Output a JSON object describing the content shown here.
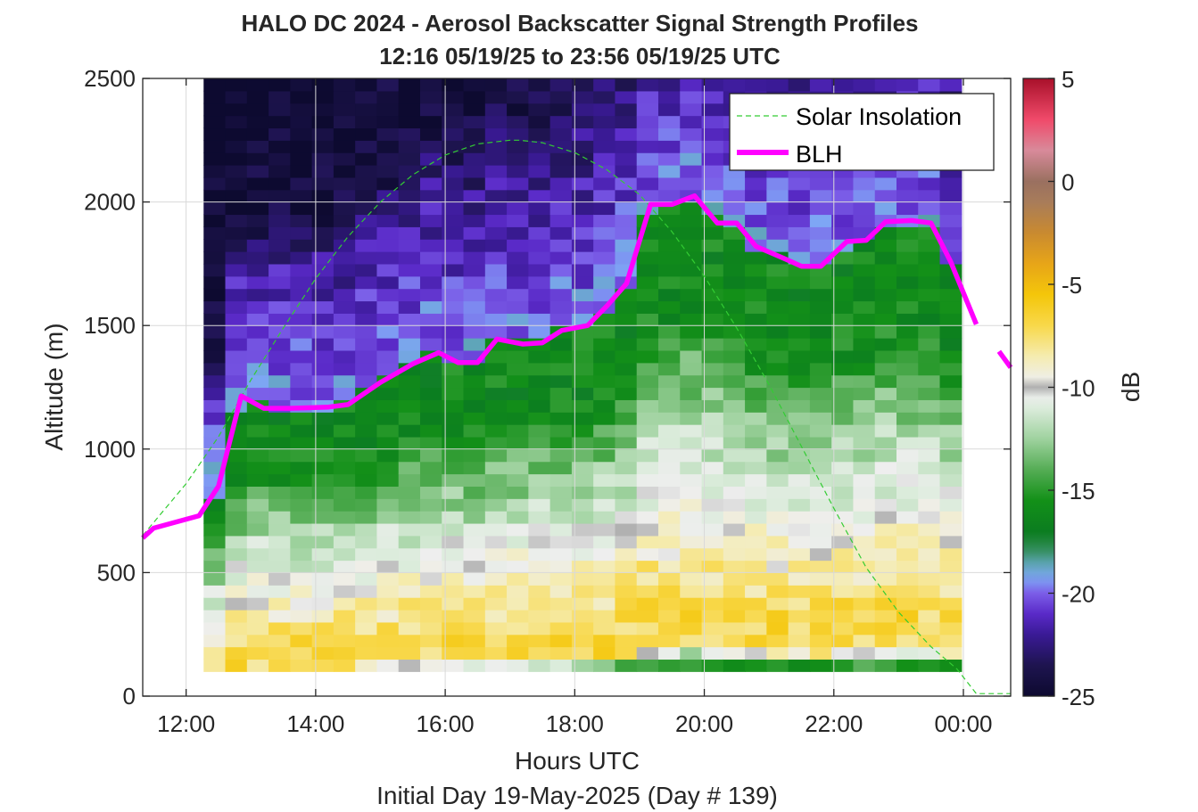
{
  "chart_data": {
    "type": "heatmap",
    "title": "HALO DC 2024 - Aerosol Backscatter Signal Strength Profiles",
    "subtitle": "12:16 05/19/25 to 23:56 05/19/25  UTC",
    "xlabel": "Hours UTC",
    "xlabel2": "Initial Day 19-May-2025 (Day # 139)",
    "ylabel": "Altitude (m)",
    "colorbar_label": "dB",
    "xlim": [
      11.33,
      24.73
    ],
    "ylim": [
      0,
      2500
    ],
    "clim": [
      -25,
      5
    ],
    "x_ticks": [
      12,
      14,
      16,
      18,
      20,
      22,
      24
    ],
    "x_tick_labels": [
      "12:00",
      "14:00",
      "16:00",
      "18:00",
      "20:00",
      "22:00",
      "00:00"
    ],
    "y_ticks": [
      0,
      500,
      1000,
      1500,
      2000,
      2500
    ],
    "y_tick_labels": [
      "0",
      "500",
      "1000",
      "1500",
      "2000",
      "2500"
    ],
    "colorbar_ticks": [
      5,
      0,
      -5,
      -10,
      -15,
      -20,
      -25
    ],
    "colorbar_tick_labels": [
      "5",
      "0",
      "-5",
      "-10",
      "-15",
      "-20",
      "-25"
    ],
    "grid": true,
    "legend_position": "top-right",
    "heatmap": {
      "x_start": 12.27,
      "x_end": 23.97,
      "y_start": 100,
      "y_end": 2500,
      "cols": 35,
      "rows": 48,
      "description_profile_points_altitude_m": [
        100,
        150,
        250,
        350,
        450,
        550,
        650,
        800,
        950,
        1050,
        1150,
        1300,
        1500,
        1700,
        1900,
        2100,
        2300,
        2500
      ],
      "profile_db": [
        -15,
        -7,
        -7,
        -8,
        -9,
        -10,
        -11,
        -12.5,
        -14,
        -15.5,
        -16,
        -16,
        -16,
        -17,
        -20,
        -22,
        -24,
        -24.5
      ]
    },
    "series": [
      {
        "name": "Solar Insolation",
        "color": "#33cc33",
        "style": "dashed",
        "x": [
          11.33,
          12,
          12.5,
          13,
          13.5,
          14,
          14.5,
          15,
          15.5,
          16,
          16.5,
          17,
          17.14,
          17.5,
          18,
          18.5,
          19,
          19.5,
          20,
          20.5,
          21,
          21.5,
          22,
          22.5,
          23,
          23.5,
          23.9,
          24.2,
          24.73
        ],
        "y": [
          650,
          860,
          1050,
          1280,
          1490,
          1690,
          1860,
          2000,
          2110,
          2190,
          2235,
          2250,
          2250,
          2240,
          2200,
          2130,
          2030,
          1880,
          1700,
          1490,
          1260,
          1010,
          760,
          520,
          340,
          200,
          110,
          10,
          10
        ]
      },
      {
        "name": "BLH",
        "color": "#ff00ff",
        "style": "solid",
        "x": [
          11.33,
          11.5,
          12.2,
          12.5,
          12.85,
          13.2,
          13.6,
          14.2,
          14.5,
          15.0,
          15.5,
          15.9,
          16.2,
          16.5,
          16.8,
          17.2,
          17.5,
          17.8,
          18.2,
          18.5,
          18.8,
          19.17,
          19.5,
          19.85,
          20.2,
          20.5,
          20.8,
          21.2,
          21.5,
          21.8,
          22.2,
          22.5,
          22.8,
          23.2,
          23.5,
          23.8,
          24.2
        ],
        "y": [
          640,
          680,
          730,
          850,
          1215,
          1165,
          1165,
          1170,
          1180,
          1270,
          1345,
          1390,
          1350,
          1350,
          1445,
          1425,
          1430,
          1480,
          1500,
          1580,
          1670,
          1990,
          1990,
          2025,
          1915,
          1915,
          1820,
          1775,
          1740,
          1740,
          1840,
          1845,
          1920,
          1925,
          1915,
          1760,
          1505
        ]
      },
      {
        "name": "",
        "color": "#ff00ff",
        "style": "solid",
        "x": [
          24.55,
          24.73
        ],
        "y": [
          1395,
          1330
        ]
      }
    ]
  }
}
